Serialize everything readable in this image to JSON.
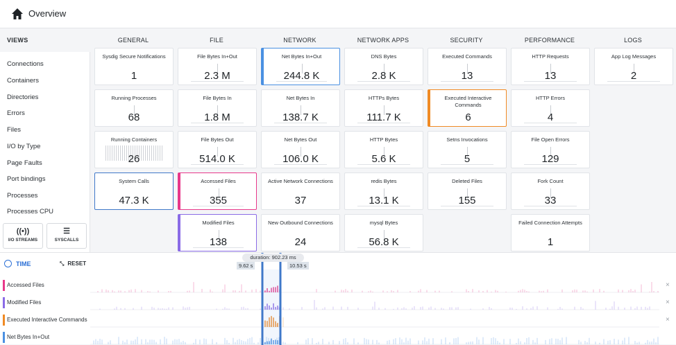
{
  "header": {
    "title": "Overview"
  },
  "sidebar": {
    "heading": "VIEWS",
    "items": [
      "Connections",
      "Containers",
      "Directories",
      "Errors",
      "Files",
      "I/O by Type",
      "Page Faults",
      "Port bindings",
      "Processes",
      "Processes CPU"
    ],
    "buttons": [
      {
        "label": "I/O STREAMS"
      },
      {
        "label": "SYSCALLS"
      }
    ]
  },
  "columns": [
    "GENERAL",
    "FILE",
    "NETWORK",
    "NETWORK APPS",
    "SECURITY",
    "PERFORMANCE",
    "LOGS"
  ],
  "cards": {
    "general": [
      {
        "label": "Sysdig Secure Notifications",
        "value": "1"
      },
      {
        "label": "Running Processes",
        "value": "68"
      },
      {
        "label": "Running Containers",
        "value": "26"
      },
      {
        "label": "System Calls",
        "value": "47.3 K"
      }
    ],
    "file": [
      {
        "label": "File Bytes In+Out",
        "value": "2.3 M"
      },
      {
        "label": "File Bytes In",
        "value": "1.8 M"
      },
      {
        "label": "File Bytes Out",
        "value": "514.0 K"
      },
      {
        "label": "Accessed Files",
        "value": "355"
      },
      {
        "label": "Modified Files",
        "value": "138"
      }
    ],
    "network": [
      {
        "label": "Net Bytes In+Out",
        "value": "244.8 K"
      },
      {
        "label": "Net Bytes In",
        "value": "138.7 K"
      },
      {
        "label": "Net Bytes Out",
        "value": "106.0 K"
      },
      {
        "label": "Active Network Connections",
        "value": "37"
      },
      {
        "label": "New Outbound Connections",
        "value": "24"
      }
    ],
    "netapps": [
      {
        "label": "DNS Bytes",
        "value": "2.8 K"
      },
      {
        "label": "HTTPs Bytes",
        "value": "111.7 K"
      },
      {
        "label": "HTTP Bytes",
        "value": "5.6 K"
      },
      {
        "label": "redis Bytes",
        "value": "13.1 K"
      },
      {
        "label": "mysql Bytes",
        "value": "56.8 K"
      }
    ],
    "security": [
      {
        "label": "Executed Commands",
        "value": "13"
      },
      {
        "label": "Executed Interactive Commands",
        "value": "6"
      },
      {
        "label": "Setns Invocations",
        "value": "5"
      },
      {
        "label": "Deleted Files",
        "value": "155"
      }
    ],
    "performance": [
      {
        "label": "HTTP Requests",
        "value": "13"
      },
      {
        "label": "HTTP Errors",
        "value": "4"
      },
      {
        "label": "File Open Errors",
        "value": "129"
      },
      {
        "label": "Fork Count",
        "value": "33"
      },
      {
        "label": "Failed Connection Attempts",
        "value": "1"
      }
    ],
    "logs": [
      {
        "label": "App Log Messages",
        "value": "2"
      }
    ]
  },
  "timeline": {
    "title": "TIME",
    "reset": "RESET",
    "duration": "duration: 902.23 ms",
    "start": "9.62 s",
    "end": "10.53 s",
    "rows": [
      {
        "label": "Accessed Files",
        "color": "#e8388a",
        "close": "×"
      },
      {
        "label": "Modified Files",
        "color": "#8a6be6",
        "close": "×"
      },
      {
        "label": "Executed Interactive Commands",
        "color": "#f08a24",
        "close": "×"
      },
      {
        "label": "Net Bytes In+Out",
        "color": "#4a90e2",
        "close": "×"
      }
    ]
  },
  "colors": {
    "accent": "#2a6fd6",
    "pink": "#e8388a",
    "purple": "#8a6be6",
    "orange": "#f08a24",
    "blue": "#4a90e2"
  }
}
